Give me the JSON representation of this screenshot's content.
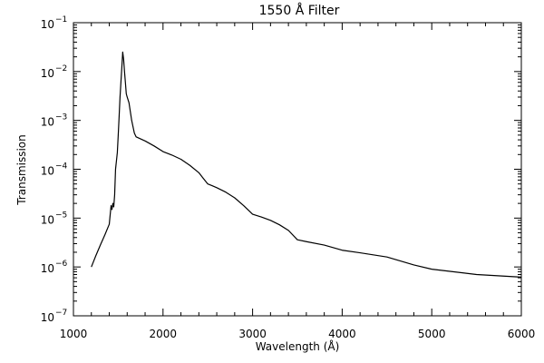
{
  "chart_data": {
    "type": "line",
    "title": "1550 Å Filter",
    "xlabel": "Wavelength (Å)",
    "ylabel": "Transmission",
    "xlim": [
      1000,
      6000
    ],
    "ylim": [
      1e-07,
      0.1
    ],
    "y_scale": "log",
    "grid": false,
    "legend": "none",
    "x_ticks": [
      1000,
      2000,
      3000,
      4000,
      5000,
      6000
    ],
    "x_tick_labels": [
      "1000",
      "2000",
      "3000",
      "4000",
      "5000",
      "6000"
    ],
    "y_ticks": [
      {
        "value": 1e-07,
        "base": "10",
        "exp": "−7"
      },
      {
        "value": 1e-06,
        "base": "10",
        "exp": "−6"
      },
      {
        "value": 1e-05,
        "base": "10",
        "exp": "−5"
      },
      {
        "value": 0.0001,
        "base": "10",
        "exp": "−4"
      },
      {
        "value": 0.001,
        "base": "10",
        "exp": "−3"
      },
      {
        "value": 0.01,
        "base": "10",
        "exp": "−2"
      },
      {
        "value": 0.1,
        "base": "10",
        "exp": "−1"
      }
    ],
    "series": [
      {
        "color": "#000000",
        "x": [
          1200,
          1250,
          1300,
          1350,
          1400,
          1420,
          1430,
          1440,
          1450,
          1460,
          1470,
          1490,
          1500,
          1510,
          1520,
          1530,
          1540,
          1550,
          1560,
          1570,
          1580,
          1590,
          1600,
          1620,
          1650,
          1680,
          1700,
          1800,
          1900,
          2000,
          2100,
          2200,
          2300,
          2400,
          2450,
          2500,
          2550,
          2600,
          2700,
          2800,
          2900,
          3000,
          3100,
          3200,
          3300,
          3400,
          3500,
          3600,
          3800,
          4000,
          4200,
          4500,
          4800,
          5000,
          5500,
          6000
        ],
        "y": [
          1e-06,
          1.7e-06,
          2.8e-06,
          4.5e-06,
          7.5e-06,
          1.8e-05,
          1.5e-05,
          2e-05,
          1.7e-05,
          3e-05,
          0.0001,
          0.00022,
          0.0005,
          0.0012,
          0.003,
          0.006,
          0.012,
          0.025,
          0.018,
          0.01,
          0.006,
          0.0035,
          0.003,
          0.0023,
          0.001,
          0.00055,
          0.00046,
          0.00038,
          0.0003,
          0.00023,
          0.000195,
          0.00016,
          0.00012,
          8.5e-05,
          6.5e-05,
          5e-05,
          4.6e-05,
          4.2e-05,
          3.4e-05,
          2.6e-05,
          1.8e-05,
          1.2e-05,
          1.05e-05,
          9e-06,
          7.3e-06,
          5.6e-06,
          3.6e-06,
          3.3e-06,
          2.8e-06,
          2.2e-06,
          1.95e-06,
          1.6e-06,
          1.1e-06,
          9e-07,
          7e-07,
          6.2e-07
        ]
      }
    ]
  }
}
